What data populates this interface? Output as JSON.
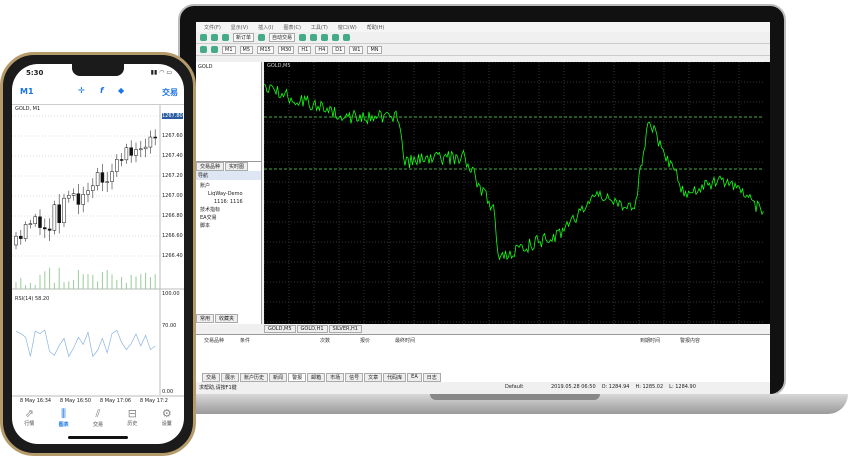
{
  "laptop": {
    "menu": [
      "文件(F)",
      "显示(V)",
      "插入(I)",
      "图表(C)",
      "工具(T)",
      "窗口(W)",
      "帮助(H)"
    ],
    "toolbar": {
      "new_order": "新订单",
      "auto_trading": "自动交易"
    },
    "timeframes": [
      "M1",
      "M5",
      "M15",
      "M30",
      "H1",
      "H4",
      "D1",
      "W1",
      "MN"
    ],
    "chart_title": "GOLD,M5",
    "chart_symbol": "GOLD",
    "navigator": {
      "tabs": [
        "交易品种",
        "实时图"
      ],
      "title": "导航",
      "items": [
        "账户",
        "LiqWay-Demo",
        "1116: 1116",
        "技术指标",
        "EA交易",
        "脚本"
      ],
      "bottom_tabs": [
        "常用",
        "收藏夹"
      ]
    },
    "chart_tabs": [
      "GOLD,M5",
      "GOLD,H1",
      "SILVER,H1"
    ],
    "columns": [
      "交易品种",
      "条件",
      "次数",
      "报价",
      "最终时间",
      "到期时间",
      "警报内容"
    ],
    "terminal_tabs": [
      "交易",
      "展示",
      "账户历史",
      "新闻",
      "警报",
      "邮箱",
      "市场",
      "信号",
      "文章",
      "代码库",
      "EA",
      "日志"
    ],
    "status": {
      "help": "求帮助,请按F1键",
      "profile": "Default",
      "time": "2019.05.28 06:50",
      "open": "O: 1284.94",
      "high": "H: 1285.02",
      "low": "L: 1284.90"
    }
  },
  "phone": {
    "time": "5:30",
    "timeframe": "M1",
    "trade": "交易",
    "symbol": "GOLD, M1",
    "price_labels": [
      "1267.80",
      "1267.60",
      "1267.40",
      "1267.20",
      "1267.00",
      "1266.80",
      "1266.60",
      "1266.40"
    ],
    "indicator_label": "RSI(14) 58.20",
    "indicator_labels": [
      "100.00",
      "70.00",
      "0.00"
    ],
    "time_labels": [
      "8 May 16:34",
      "8 May 16:50",
      "8 May 17:06",
      "8 May 17:2"
    ],
    "tabs": [
      "行情",
      "图表",
      "交易",
      "历史",
      "设置"
    ],
    "accent": "#1a73e8"
  }
}
